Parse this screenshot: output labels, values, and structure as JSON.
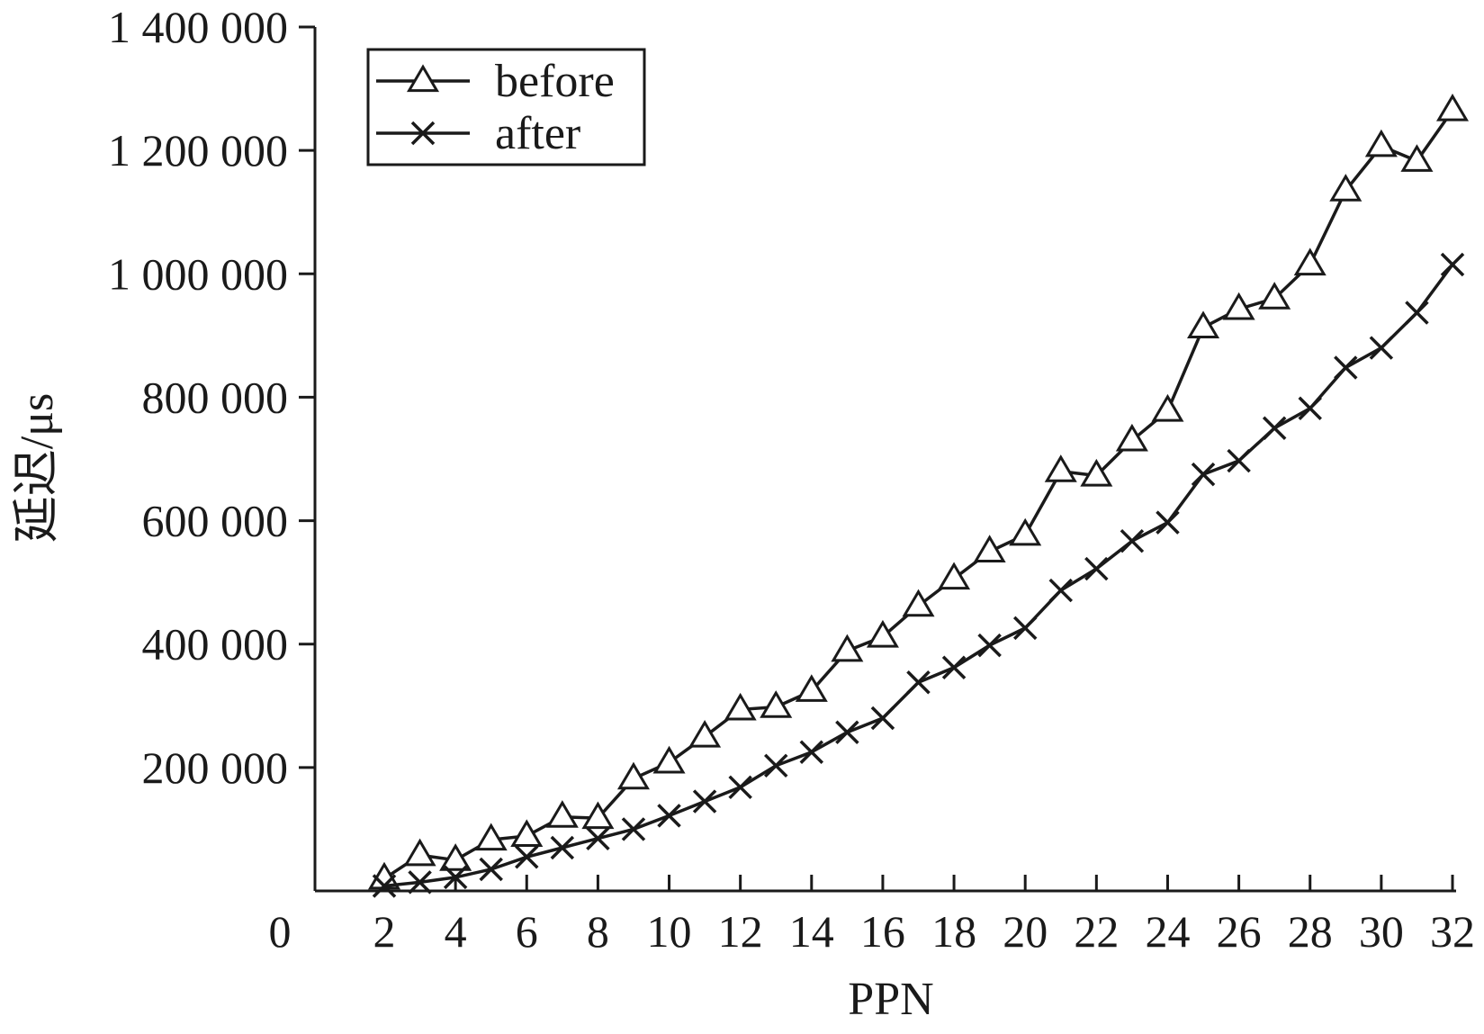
{
  "chart_data": {
    "type": "line",
    "xlabel": "PPN",
    "ylabel": "延迟/μs",
    "x": [
      2,
      3,
      4,
      5,
      6,
      7,
      8,
      9,
      10,
      11,
      12,
      13,
      14,
      15,
      16,
      17,
      18,
      19,
      20,
      21,
      22,
      23,
      24,
      25,
      26,
      27,
      28,
      29,
      30,
      31,
      32
    ],
    "xticks": [
      2,
      4,
      6,
      8,
      10,
      12,
      14,
      16,
      18,
      20,
      22,
      24,
      26,
      28,
      30,
      32
    ],
    "x_origin_label": "0",
    "yticks": [
      {
        "value": 200000,
        "label": "200 000"
      },
      {
        "value": 400000,
        "label": "400 000"
      },
      {
        "value": 600000,
        "label": "600 000"
      },
      {
        "value": 800000,
        "label": "800 000"
      },
      {
        "value": 1000000,
        "label": "1 000 000"
      },
      {
        "value": 1200000,
        "label": "1 200 000"
      },
      {
        "value": 1400000,
        "label": "1 400 000"
      }
    ],
    "ylim": [
      0,
      1400000
    ],
    "grid": false,
    "legend_position": "top-left",
    "series": [
      {
        "name": "before",
        "marker": "triangle",
        "values": [
          20000,
          58000,
          50000,
          83000,
          89000,
          120000,
          118000,
          182000,
          208000,
          250000,
          294000,
          298000,
          324000,
          389000,
          412000,
          462000,
          506000,
          550000,
          577000,
          680000,
          673000,
          730000,
          778000,
          913000,
          943000,
          960000,
          1015000,
          1135000,
          1207000,
          1183000,
          1265000
        ]
      },
      {
        "name": "after",
        "marker": "cross",
        "values": [
          8000,
          14000,
          22000,
          35000,
          55000,
          70000,
          85000,
          100000,
          122000,
          145000,
          168000,
          203000,
          225000,
          257000,
          280000,
          338000,
          362000,
          398000,
          426000,
          487000,
          522000,
          567000,
          597000,
          675000,
          697000,
          750000,
          782000,
          848000,
          880000,
          937000,
          1015000
        ]
      }
    ]
  }
}
